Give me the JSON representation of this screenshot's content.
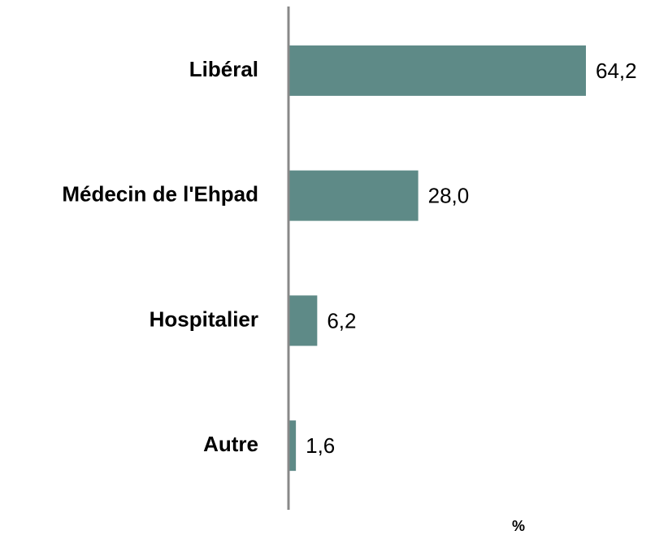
{
  "chart_data": {
    "type": "hbar",
    "categories": [
      "Libéral",
      "Médecin de l'Ehpad",
      "Hospitalier",
      "Autre"
    ],
    "values": [
      64.2,
      28.0,
      6.2,
      1.6
    ],
    "value_labels": [
      "64,2",
      "28,0",
      "6,2",
      "1,6"
    ],
    "color": "#5e8a87",
    "x_label": "%"
  }
}
